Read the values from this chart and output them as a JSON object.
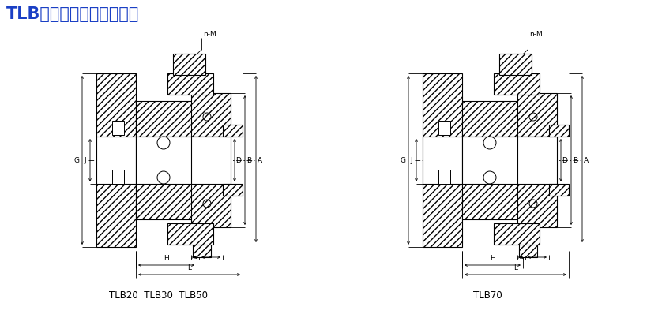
{
  "title": "TLB经济钢珠型扭矩限制器",
  "title_color": "#1a3fc4",
  "title_fontsize": 15,
  "bg_color": "#ffffff",
  "lc": "#000000",
  "label1": "TLB20  TLB30  TLB50",
  "label2": "TLB70"
}
